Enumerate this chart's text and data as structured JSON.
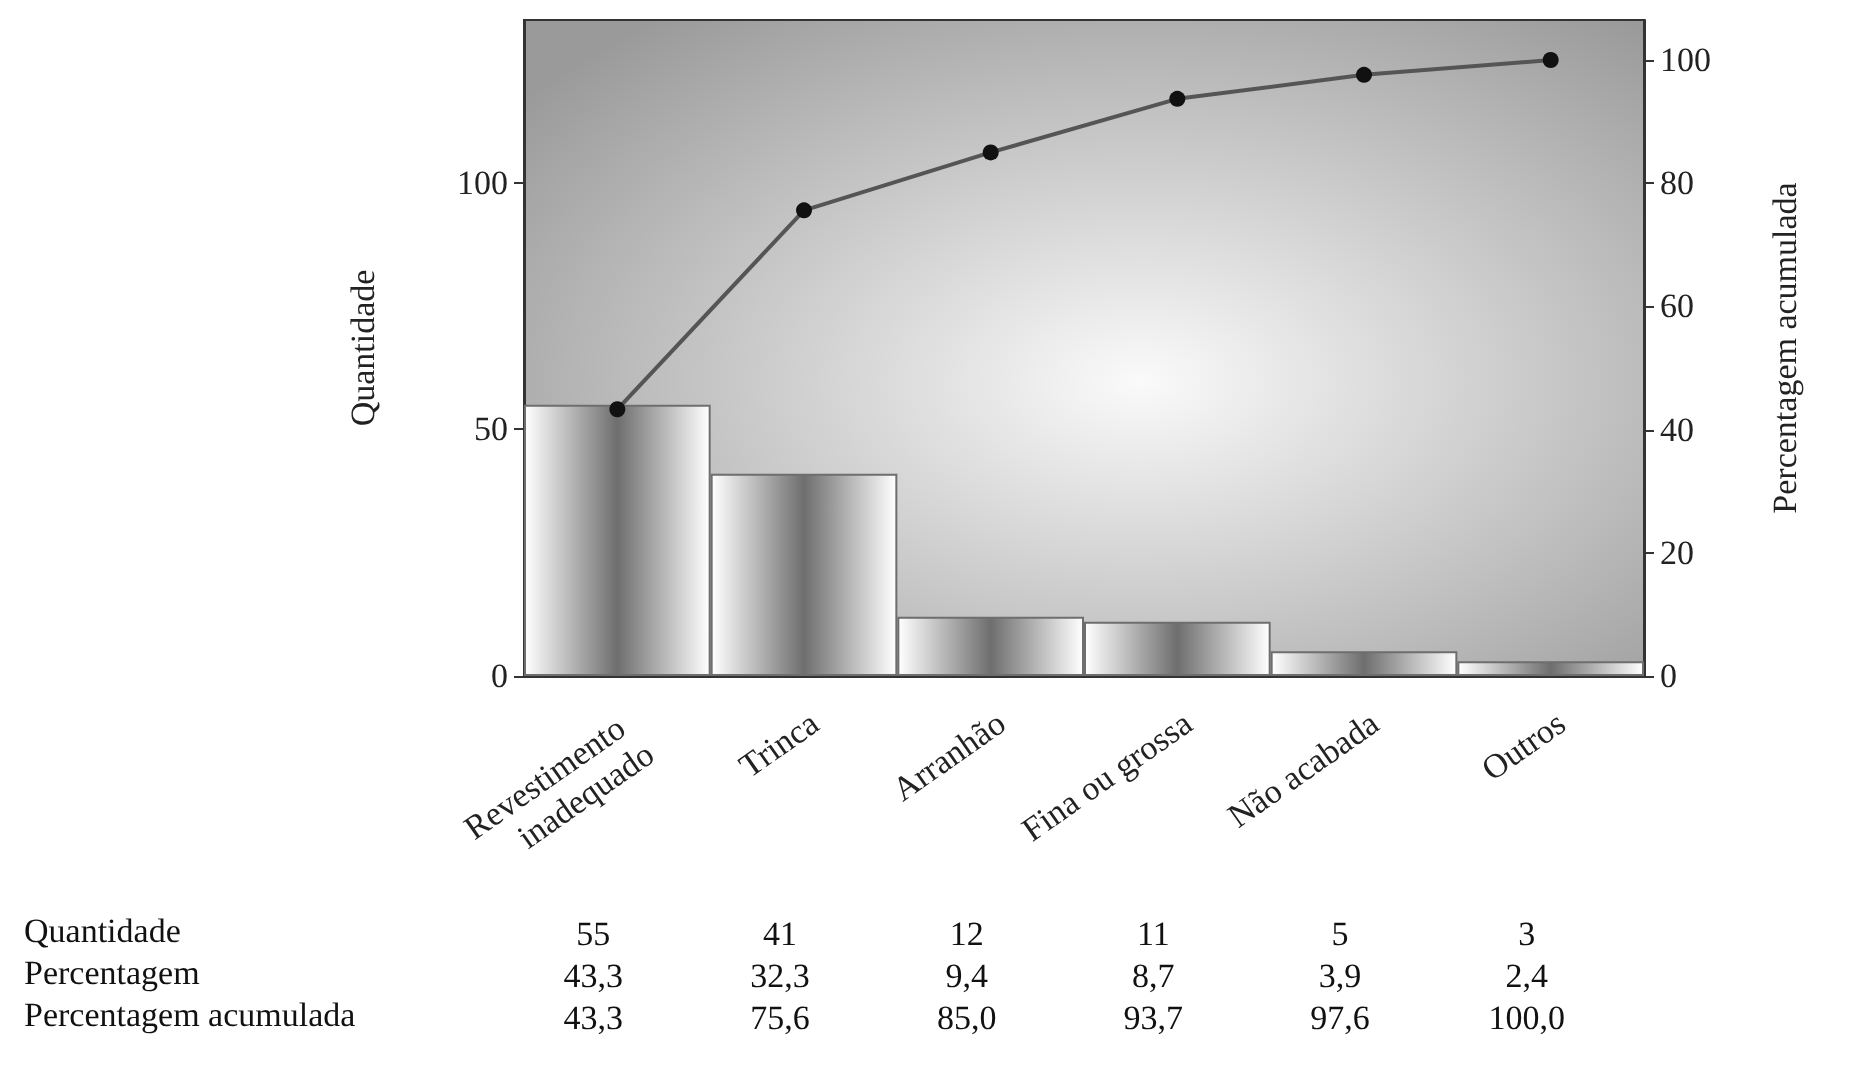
{
  "chart_data": {
    "type": "bar",
    "categories": [
      "Revestimento inadequado",
      "Trinca",
      "Arranhão",
      "Fina ou grossa",
      "Não acabada",
      "Outros"
    ],
    "series": [
      {
        "color": "#6e6e6e",
        "values": [
          55,
          41,
          12,
          11,
          5,
          3
        ],
        "value_labels": [
          "55",
          "41",
          "12",
          "11",
          "5",
          "3"
        ]
      },
      {
        "type": "line",
        "axis": "y2",
        "color": "#555555",
        "marker": "circle",
        "values": [
          43.3,
          75.6,
          85.0,
          93.7,
          97.6,
          100.0
        ],
        "value_labels": [
          "43,3",
          "75,6",
          "85,0",
          "93,7",
          "97,6",
          "100,0"
        ]
      }
    ],
    "annotations": [
      "Quantidade",
      "Percentagem",
      "Percentagem acumulada",
      "43,3",
      "32,3",
      "9,4",
      "8,7",
      "3,9",
      "2,4"
    ],
    "ylabel": "Quantidade",
    "y2label": "Percentagem acumulada",
    "ylim": [
      0,
      133
    ],
    "yticks": [
      0,
      50,
      100
    ],
    "y2lim": [
      0,
      106.5
    ],
    "y2ticks": [
      0,
      20,
      40,
      60,
      80,
      100
    ],
    "grid": false
  }
}
